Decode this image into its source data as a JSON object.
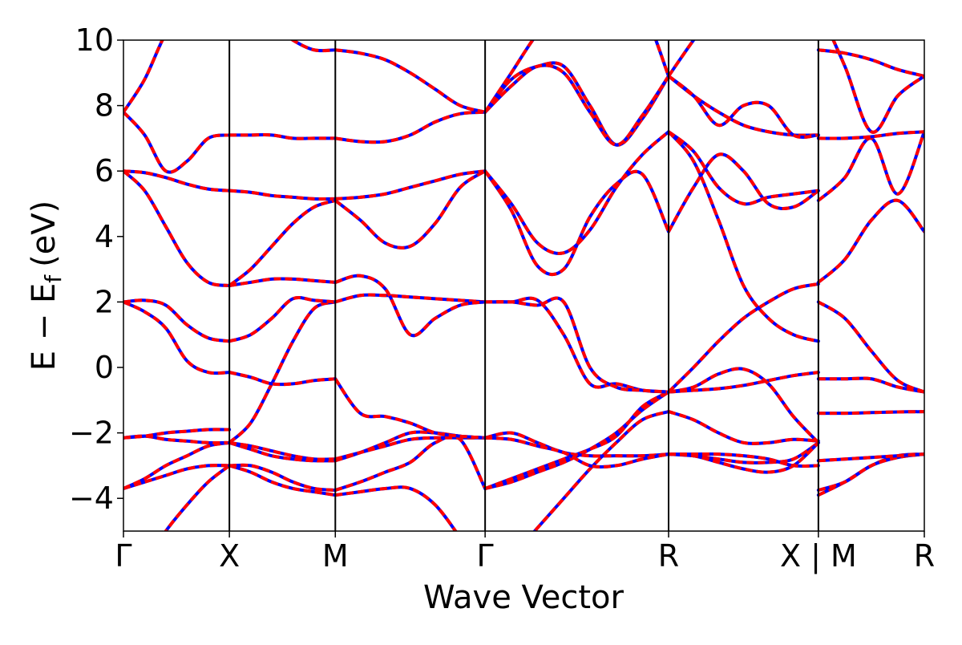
{
  "chart_data": {
    "type": "line",
    "title": "",
    "xlabel": "Wave Vector",
    "ylabel_main": "E − E",
    "ylabel_sub": "f",
    "ylabel_unit": "(eV)",
    "ylim": [
      -5,
      10
    ],
    "yticks": [
      10,
      8,
      6,
      4,
      2,
      0,
      -2,
      -4
    ],
    "ytick_labels": [
      "10",
      "8",
      "6",
      "4",
      "2",
      "0",
      "−2",
      "−4"
    ],
    "grid": false,
    "colors": {
      "primary": "#0000ff",
      "overlay": "#ff0000",
      "axis": "#000000"
    },
    "high_symmetry_points": [
      {
        "label": "Γ",
        "pos": 0.0
      },
      {
        "label": "X",
        "pos": 0.5
      },
      {
        "label": "M",
        "pos": 1.0
      },
      {
        "label": "Γ",
        "pos": 1.707
      },
      {
        "label": "R",
        "pos": 2.573
      },
      {
        "label": "X | M",
        "pos": 3.28
      },
      {
        "label": "R",
        "pos": 3.78
      }
    ],
    "segments": [
      {
        "name": "Γ-X",
        "x0": 0.0,
        "x1": 0.5,
        "bands": [
          [
            -6.8,
            -6.0,
            -5.0,
            -4.2,
            -3.5,
            -3.0
          ],
          [
            -3.7,
            -3.5,
            -3.3,
            -3.1,
            -3.0,
            -3.0
          ],
          [
            -3.7,
            -3.4,
            -3.0,
            -2.7,
            -2.4,
            -2.3
          ],
          [
            -2.15,
            -2.1,
            -2.2,
            -2.25,
            -2.3,
            -2.3
          ],
          [
            -2.15,
            -2.1,
            -2.0,
            -1.95,
            -1.9,
            -1.9
          ],
          [
            2.0,
            1.7,
            1.2,
            0.2,
            -0.15,
            -0.15
          ],
          [
            2.0,
            2.05,
            1.9,
            1.3,
            0.9,
            0.8
          ],
          [
            6.0,
            5.4,
            4.3,
            3.2,
            2.6,
            2.5
          ],
          [
            6.0,
            5.95,
            5.8,
            5.6,
            5.45,
            5.4
          ],
          [
            7.8,
            7.1,
            6.0,
            6.3,
            7.0,
            7.1
          ],
          [
            7.8,
            8.8,
            10.2,
            11.0,
            11.5,
            11.5
          ]
        ]
      },
      {
        "name": "X-M",
        "x0": 0.5,
        "x1": 1.0,
        "bands": [
          [
            -3.0,
            -3.2,
            -3.5,
            -3.7,
            -3.8,
            -3.9
          ],
          [
            -3.0,
            -3.0,
            -3.2,
            -3.5,
            -3.7,
            -3.75
          ],
          [
            -2.3,
            -2.5,
            -2.7,
            -2.8,
            -2.85,
            -2.85
          ],
          [
            -2.3,
            -2.4,
            -2.55,
            -2.7,
            -2.8,
            -2.8
          ],
          [
            -2.3,
            -1.7,
            -0.5,
            0.8,
            1.8,
            2.0
          ],
          [
            -0.15,
            -0.3,
            -0.5,
            -0.5,
            -0.4,
            -0.35
          ],
          [
            0.8,
            1.0,
            1.5,
            2.1,
            2.05,
            2.0
          ],
          [
            2.5,
            2.6,
            2.7,
            2.7,
            2.65,
            2.6
          ],
          [
            2.5,
            3.0,
            3.7,
            4.4,
            4.9,
            5.1
          ],
          [
            5.4,
            5.35,
            5.25,
            5.2,
            5.15,
            5.15
          ],
          [
            7.1,
            7.1,
            7.1,
            7.0,
            7.0,
            7.0
          ],
          [
            11.5,
            11.0,
            10.5,
            10.0,
            9.7,
            9.7
          ]
        ]
      },
      {
        "name": "M-Γ",
        "x0": 1.0,
        "x1": 1.707,
        "bands": [
          [
            -3.9,
            -3.8,
            -3.7,
            -3.7,
            -4.2,
            -5.2,
            -6.3
          ],
          [
            -3.75,
            -3.5,
            -3.2,
            -2.9,
            -2.3,
            -2.2,
            -3.7
          ],
          [
            -2.85,
            -2.6,
            -2.3,
            -2.0,
            -2.0,
            -2.1,
            -2.15
          ],
          [
            -2.8,
            -2.6,
            -2.4,
            -2.2,
            -2.15,
            -2.15,
            -2.15
          ],
          [
            -0.35,
            -1.4,
            -1.5,
            -1.7,
            -2.0,
            -2.1,
            -2.15
          ],
          [
            2.0,
            2.2,
            2.2,
            2.15,
            2.1,
            2.05,
            2.0
          ],
          [
            2.6,
            2.8,
            2.4,
            1.0,
            1.5,
            1.9,
            2.0
          ],
          [
            5.1,
            4.5,
            3.8,
            3.7,
            4.4,
            5.5,
            6.0
          ],
          [
            5.15,
            5.2,
            5.3,
            5.5,
            5.7,
            5.9,
            6.0
          ],
          [
            7.0,
            6.9,
            6.9,
            7.1,
            7.5,
            7.75,
            7.8
          ],
          [
            9.7,
            9.6,
            9.4,
            9.0,
            8.5,
            8.0,
            7.8
          ]
        ]
      },
      {
        "name": "Γ-R",
        "x0": 1.707,
        "x1": 2.573,
        "bands": [
          [
            -6.3,
            -5.8,
            -4.9,
            -4.0,
            -3.1,
            -2.3,
            -1.6,
            -1.35
          ],
          [
            -3.7,
            -3.5,
            -3.2,
            -2.9,
            -2.5,
            -2.0,
            -1.3,
            -0.75
          ],
          [
            -3.7,
            -3.4,
            -3.1,
            -2.8,
            -2.5,
            -2.1,
            -1.2,
            -0.75
          ],
          [
            -2.15,
            -2.0,
            -2.3,
            -2.6,
            -2.7,
            -2.7,
            -2.7,
            -2.65
          ],
          [
            -2.15,
            -2.2,
            -2.4,
            -2.6,
            -3.0,
            -3.0,
            -2.8,
            -2.65
          ],
          [
            2.0,
            2.0,
            2.05,
            1.0,
            -0.5,
            -0.5,
            -0.7,
            -0.75
          ],
          [
            2.0,
            2.0,
            1.9,
            2.0,
            0.0,
            -0.6,
            -0.7,
            -0.75
          ],
          [
            6.0,
            4.8,
            3.1,
            3.0,
            4.6,
            5.6,
            5.9,
            4.15
          ],
          [
            6.0,
            5.0,
            3.8,
            3.5,
            4.2,
            5.5,
            6.5,
            7.2
          ],
          [
            7.8,
            8.8,
            9.2,
            9.2,
            8.0,
            6.8,
            7.6,
            8.9
          ],
          [
            7.8,
            8.6,
            9.2,
            9.0,
            7.8,
            6.8,
            7.7,
            8.9
          ],
          [
            7.8,
            9.0,
            10.2,
            11.0,
            11.5,
            11.8,
            11.0,
            8.9
          ]
        ]
      },
      {
        "name": "R-X",
        "x0": 2.573,
        "x1": 3.28,
        "bands": [
          [
            -1.35,
            -1.6,
            -2.0,
            -2.3,
            -2.3,
            -2.2,
            -2.25
          ],
          [
            -2.65,
            -2.7,
            -2.8,
            -2.9,
            -2.9,
            -2.8,
            -2.3
          ],
          [
            -2.65,
            -2.7,
            -2.9,
            -3.1,
            -3.2,
            -3.0,
            -2.3
          ],
          [
            -2.65,
            -2.65,
            -2.65,
            -2.7,
            -2.8,
            -3.0,
            -3.0
          ],
          [
            -0.75,
            -0.7,
            -0.65,
            -0.55,
            -0.4,
            -0.25,
            -0.15
          ],
          [
            -0.75,
            -0.6,
            -0.2,
            -0.05,
            -0.5,
            -1.5,
            -2.3
          ],
          [
            -0.75,
            0.0,
            0.8,
            1.5,
            2.0,
            2.4,
            2.55
          ],
          [
            4.15,
            5.5,
            6.5,
            6.0,
            5.0,
            4.9,
            5.4
          ],
          [
            7.2,
            6.3,
            4.5,
            2.5,
            1.5,
            1.0,
            0.8
          ],
          [
            7.2,
            6.6,
            5.5,
            5.0,
            5.2,
            5.3,
            5.4
          ],
          [
            8.9,
            8.3,
            7.8,
            7.4,
            7.2,
            7.1,
            7.1
          ],
          [
            8.9,
            8.3,
            7.4,
            8.0,
            8.0,
            7.1,
            7.1
          ],
          [
            8.9,
            10.0,
            11.0,
            12.0,
            12.0,
            12.0,
            12.0
          ]
        ]
      },
      {
        "name": "M-R",
        "x0": 3.28,
        "x1": 3.78,
        "bands": [
          [
            -3.9,
            -3.5,
            -3.0,
            -2.7,
            -2.65
          ],
          [
            -3.75,
            -3.5,
            -3.0,
            -2.75,
            -2.65
          ],
          [
            -2.85,
            -2.8,
            -2.75,
            -2.7,
            -2.65
          ],
          [
            -1.4,
            -1.4,
            -1.38,
            -1.36,
            -1.35
          ],
          [
            -0.35,
            -0.35,
            -0.35,
            -0.6,
            -0.75
          ],
          [
            2.0,
            1.5,
            0.5,
            -0.4,
            -0.75
          ],
          [
            2.6,
            3.3,
            4.5,
            5.1,
            4.15
          ],
          [
            5.1,
            5.8,
            7.0,
            5.3,
            7.2
          ],
          [
            7.0,
            7.0,
            7.05,
            7.15,
            7.2
          ],
          [
            9.7,
            9.6,
            9.4,
            9.1,
            8.9
          ],
          [
            11.0,
            9.2,
            7.2,
            8.3,
            8.9
          ]
        ]
      }
    ]
  }
}
